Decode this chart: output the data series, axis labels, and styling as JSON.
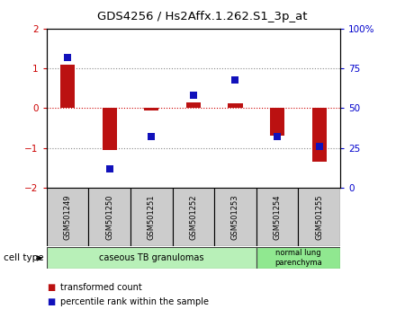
{
  "title": "GDS4256 / Hs2Affx.1.262.S1_3p_at",
  "samples": [
    "GSM501249",
    "GSM501250",
    "GSM501251",
    "GSM501252",
    "GSM501253",
    "GSM501254",
    "GSM501255"
  ],
  "transformed_counts": [
    1.1,
    -1.05,
    -0.05,
    0.15,
    0.12,
    -0.7,
    -1.35
  ],
  "percentile_raw": [
    82,
    12,
    32,
    58,
    68,
    32,
    26
  ],
  "ylim_left": [
    -2,
    2
  ],
  "ylim_right": [
    0,
    100
  ],
  "yticks_left": [
    -2,
    -1,
    0,
    1,
    2
  ],
  "yticks_right": [
    0,
    25,
    50,
    75,
    100
  ],
  "group1_count": 5,
  "group2_count": 2,
  "group1_label": "caseous TB granulomas",
  "group2_label": "normal lung\nparenchyma",
  "group1_color": "#b8f0b8",
  "group2_color": "#90e890",
  "bar_color": "#bb1111",
  "dot_color": "#1111bb",
  "bar_width": 0.35,
  "dot_size": 40,
  "legend_labels": [
    "transformed count",
    "percentile rank within the sample"
  ],
  "left_tick_color": "#cc0000",
  "right_tick_color": "#0000cc",
  "sample_box_color": "#cccccc",
  "cell_type_label": "cell type",
  "hline_color": "#888888",
  "zero_line_color": "#cc0000"
}
